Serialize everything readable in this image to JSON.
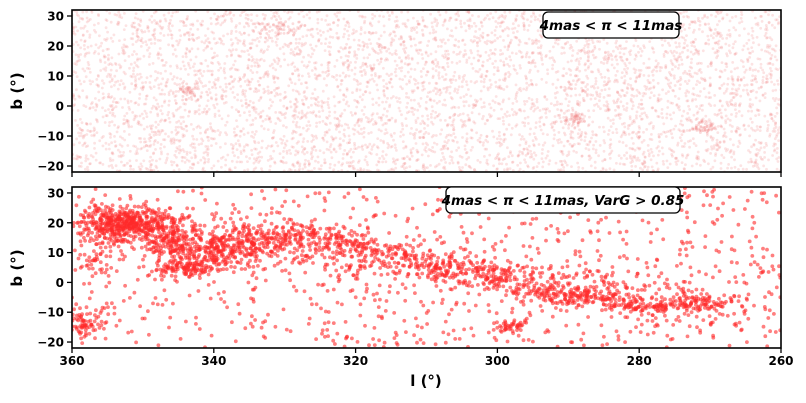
{
  "chart_data": [
    {
      "type": "scatter",
      "panel": "top",
      "annotation": "4mas < π < 11mas",
      "xlabel": "",
      "ylabel": "b (°)",
      "xlim": [
        360,
        260
      ],
      "ylim": [
        -22,
        32
      ],
      "yticks": [
        "30",
        "20",
        "10",
        "0",
        "−10",
        "−20"
      ],
      "grid": false,
      "marker_color": "#f08080",
      "series": [
        {
          "points": "dense uniform field across the full panel (very faint, many thousands of points)",
          "clumps": [
            {
              "l": 343.5,
              "b": 5,
              "sigma_l": 1.2,
              "sigma_b": 1.5
            },
            {
              "l": 289.0,
              "b": -4.5,
              "sigma_l": 1.2,
              "sigma_b": 1.2
            },
            {
              "l": 271.0,
              "b": -7,
              "sigma_l": 1.2,
              "sigma_b": 1.2
            },
            {
              "l": 331.0,
              "b": 26,
              "sigma_l": 2.0,
              "sigma_b": 1.5
            }
          ]
        }
      ]
    },
    {
      "type": "scatter",
      "panel": "bottom",
      "annotation": "4mas < π < 11mas, VarG > 0.85",
      "xlabel": "l (°)",
      "ylabel": "b (°)",
      "xlim": [
        360,
        260
      ],
      "ylim": [
        -22,
        32
      ],
      "xticks": [
        "360",
        "340",
        "320",
        "300",
        "280",
        "260"
      ],
      "yticks": [
        "30",
        "20",
        "10",
        "0",
        "−10",
        "−20"
      ],
      "grid": false,
      "marker_color": "#ff2a2a",
      "series": [
        {
          "points": "sparse background field plus clustered band running from upper-left (l≈354, b≈20) to lower-right (l≈270, b≈-7)",
          "clumps": [
            {
              "l": 354,
              "b": 20,
              "sigma_l": 2.5,
              "sigma_b": 3.0,
              "weight": 300
            },
            {
              "l": 350,
              "b": 19,
              "sigma_l": 3.0,
              "sigma_b": 3.0,
              "weight": 200
            },
            {
              "l": 346,
              "b": 13,
              "sigma_l": 2.0,
              "sigma_b": 2.5,
              "weight": 110
            },
            {
              "l": 344,
              "b": 4.5,
              "sigma_l": 2.0,
              "sigma_b": 1.5,
              "weight": 120
            },
            {
              "l": 339,
              "b": 10,
              "sigma_l": 3.5,
              "sigma_b": 3.0,
              "weight": 200
            },
            {
              "l": 333,
              "b": 15,
              "sigma_l": 3.0,
              "sigma_b": 2.5,
              "weight": 100
            },
            {
              "l": 327,
              "b": 16,
              "sigma_l": 3.0,
              "sigma_b": 2.0,
              "weight": 90
            },
            {
              "l": 321,
              "b": 13,
              "sigma_l": 2.5,
              "sigma_b": 2.0,
              "weight": 80
            },
            {
              "l": 314,
              "b": 8,
              "sigma_l": 3.0,
              "sigma_b": 2.5,
              "weight": 70
            },
            {
              "l": 307,
              "b": 5,
              "sigma_l": 2.5,
              "sigma_b": 2.5,
              "weight": 70
            },
            {
              "l": 300,
              "b": 2,
              "sigma_l": 2.5,
              "sigma_b": 2.5,
              "weight": 80
            },
            {
              "l": 298,
              "b": -15,
              "sigma_l": 1.2,
              "sigma_b": 1.2,
              "weight": 40
            },
            {
              "l": 292,
              "b": -3,
              "sigma_l": 2.5,
              "sigma_b": 2.0,
              "weight": 70
            },
            {
              "l": 288,
              "b": -5,
              "sigma_l": 2.5,
              "sigma_b": 1.5,
              "weight": 80
            },
            {
              "l": 280,
              "b": -8,
              "sigma_l": 2.5,
              "sigma_b": 1.5,
              "weight": 70
            },
            {
              "l": 272,
              "b": -7,
              "sigma_l": 3.0,
              "sigma_b": 1.5,
              "weight": 80
            },
            {
              "l": 358,
              "b": -14,
              "sigma_l": 1.5,
              "sigma_b": 2.5,
              "weight": 70
            },
            {
              "l": 357,
              "b": 6,
              "sigma_l": 1.5,
              "sigma_b": 2.0,
              "weight": 30
            }
          ]
        }
      ]
    }
  ]
}
